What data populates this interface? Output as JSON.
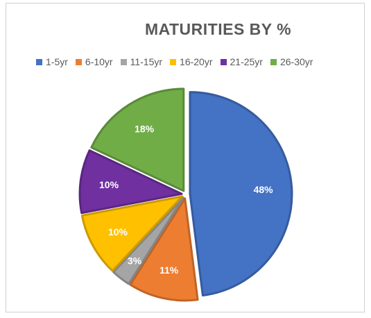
{
  "chart_data": {
    "type": "pie",
    "title": "MATURITIES BY %",
    "legend_position": "top",
    "categories": [
      "1-5yr",
      "6-10yr",
      "11-15yr",
      "16-20yr",
      "21-25yr",
      "26-30yr"
    ],
    "values": [
      48,
      11,
      3,
      10,
      10,
      18
    ],
    "labels": [
      "48%",
      "11%",
      "3%",
      "10%",
      "10%",
      "18%"
    ],
    "colors": [
      "#4472C4",
      "#ED7D31",
      "#A5A5A5",
      "#FFC000",
      "#7030A0",
      "#70AD47"
    ],
    "exploded": true
  }
}
